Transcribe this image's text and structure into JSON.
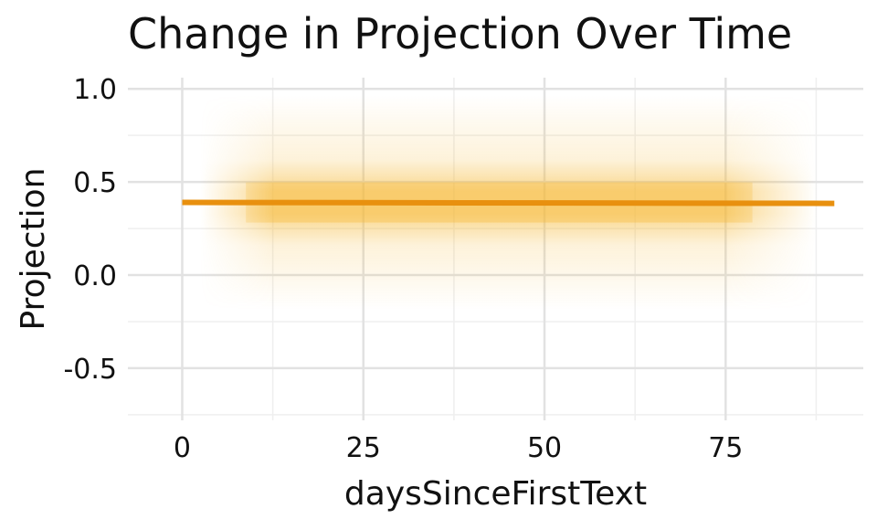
{
  "chart_data": {
    "type": "line",
    "title": "Change in Projection Over Time",
    "xlabel": "daysSinceFirstText",
    "ylabel": "Projection",
    "xlim": [
      -7.5,
      94
    ],
    "ylim": [
      -0.78,
      1.06
    ],
    "x_ticks": [
      0,
      25,
      50,
      75
    ],
    "x_tick_labels": [
      "0",
      "25",
      "50",
      "75"
    ],
    "x_minor_ticks": [
      12.5,
      37.5,
      62.5,
      87.5
    ],
    "y_ticks": [
      1.0,
      0.5,
      0.0,
      -0.5
    ],
    "y_tick_labels": [
      "1.0",
      "0.5",
      "0.0",
      "-0.5"
    ],
    "y_minor_ticks": [
      0.75,
      0.25,
      -0.25,
      -0.75
    ],
    "grid": true,
    "series": [
      {
        "x": [
          0,
          90
        ],
        "values": [
          0.39,
          0.385
        ],
        "color": "#E8900F"
      }
    ],
    "uncertainty_band": {
      "x_range": [
        5,
        85
      ],
      "center": 0.39,
      "color": "#F5B731"
    }
  }
}
